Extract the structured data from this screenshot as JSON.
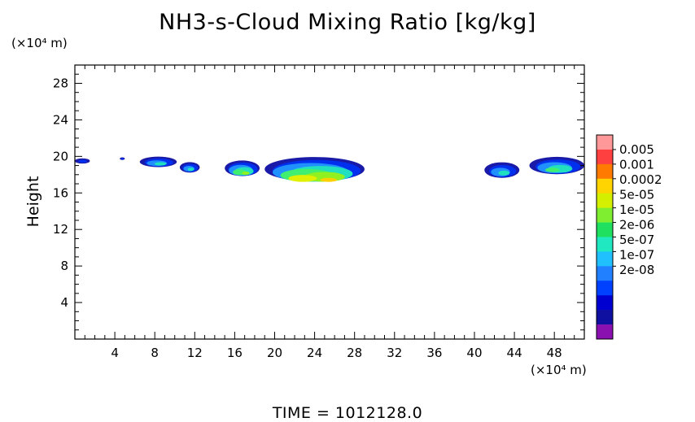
{
  "chart_data": {
    "type": "heatmap",
    "title": "NH3-s-Cloud Mixing Ratio [kg/kg]",
    "xlabel": "",
    "ylabel": "Height",
    "x_unit": "(×10⁴ m)",
    "y_unit": "(×10⁴ m)",
    "xlim": [
      0,
      51
    ],
    "ylim": [
      0,
      30
    ],
    "x_ticks": [
      4,
      8,
      12,
      16,
      20,
      24,
      28,
      32,
      36,
      40,
      44,
      48
    ],
    "y_ticks": [
      4,
      8,
      12,
      16,
      20,
      24,
      28
    ],
    "colorbar": {
      "labels": [
        "0.005",
        "0.001",
        "0.0002",
        "5e-05",
        "1e-05",
        "2e-06",
        "5e-07",
        "1e-07",
        "2e-08"
      ],
      "colors": [
        "#ff9999",
        "#ff4040",
        "#ff7a00",
        "#ffd400",
        "#d4f000",
        "#80ee30",
        "#20e060",
        "#20e8c0",
        "#20c0ff",
        "#2080ff",
        "#0040ff",
        "#0000d0",
        "#1010a0",
        "#8a10b0"
      ]
    },
    "cloud_regions": [
      {
        "x": [
          0,
          1.5
        ],
        "y": [
          19.2,
          19.8
        ],
        "max_level": "1e-07"
      },
      {
        "x": [
          4.5,
          5.0
        ],
        "y": [
          19.6,
          19.9
        ],
        "max_level": "1e-07"
      },
      {
        "x": [
          6.5,
          10.2
        ],
        "y": [
          18.8,
          20.0
        ],
        "max_level": "2e-06"
      },
      {
        "x": [
          10.5,
          12.5
        ],
        "y": [
          18.2,
          19.4
        ],
        "max_level": "2e-06"
      },
      {
        "x": [
          15.0,
          18.5
        ],
        "y": [
          17.8,
          19.6
        ],
        "max_level": "1e-05"
      },
      {
        "x": [
          19.0,
          29.0
        ],
        "y": [
          17.2,
          20.0
        ],
        "max_level": "0.0002"
      },
      {
        "x": [
          41.0,
          44.5
        ],
        "y": [
          17.6,
          19.4
        ],
        "max_level": "2e-06"
      },
      {
        "x": [
          45.5,
          51.0
        ],
        "y": [
          18.0,
          20.0
        ],
        "max_level": "5e-06"
      }
    ],
    "grid": false
  },
  "footer": {
    "time_label": "TIME  =  1012128.0"
  }
}
